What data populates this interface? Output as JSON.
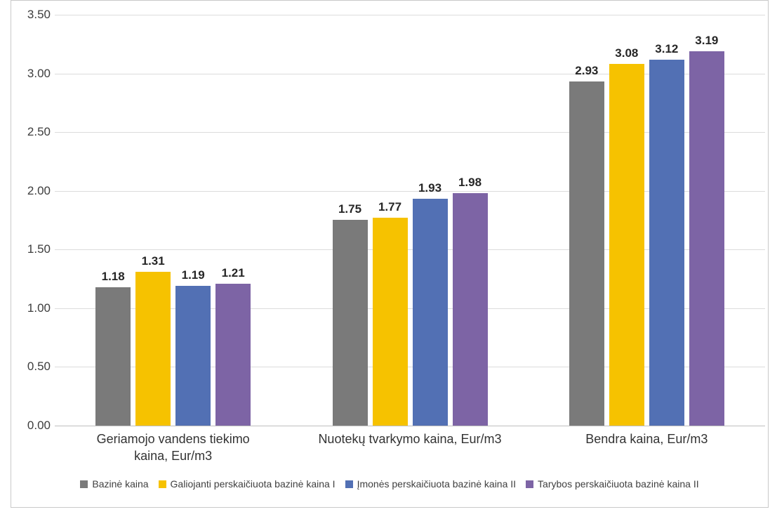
{
  "chart_data": {
    "type": "bar",
    "title": "",
    "categories": [
      "Geriamojo vandens tiekimo\nkaina, Eur/m3",
      "Nuotekų tvarkymo kaina, Eur/m3",
      "Bendra kaina, Eur/m3"
    ],
    "series": [
      {
        "name": "Bazinė kaina",
        "color": "#7a7a7a",
        "values": [
          1.18,
          1.75,
          2.93
        ]
      },
      {
        "name": "Galiojanti perskaičiuota bazinė kaina I",
        "color": "#f6c200",
        "values": [
          1.31,
          1.77,
          3.08
        ]
      },
      {
        "name": "Įmonės perskaičiuota bazinė kaina II",
        "color": "#5270b4",
        "values": [
          1.19,
          1.93,
          3.12
        ]
      },
      {
        "name": "Tarybos perskaičiuota bazinė kaina II",
        "color": "#7d64a5",
        "values": [
          1.21,
          1.98,
          3.19
        ]
      }
    ],
    "value_labels": [
      [
        "1.18",
        "1.75",
        "2.93"
      ],
      [
        "1.31",
        "1.77",
        "3.08"
      ],
      [
        "1.19",
        "1.93",
        "3.12"
      ],
      [
        "1.21",
        "1.98",
        "3.19"
      ]
    ],
    "y_ticks": [
      "0.00",
      "0.50",
      "1.00",
      "1.50",
      "2.00",
      "2.50",
      "3.00",
      "3.50"
    ],
    "ylim": [
      0,
      3.5
    ],
    "xlabel": "",
    "ylabel": "",
    "grid": true,
    "legend_position": "bottom"
  },
  "colors": {
    "gridline": "#dcdcdc",
    "baseline": "#bfbfbf",
    "axis_text": "#3d3d3d",
    "value_label_text": "#262626",
    "frame_border": "#c9c9c9",
    "background": "#ffffff"
  }
}
